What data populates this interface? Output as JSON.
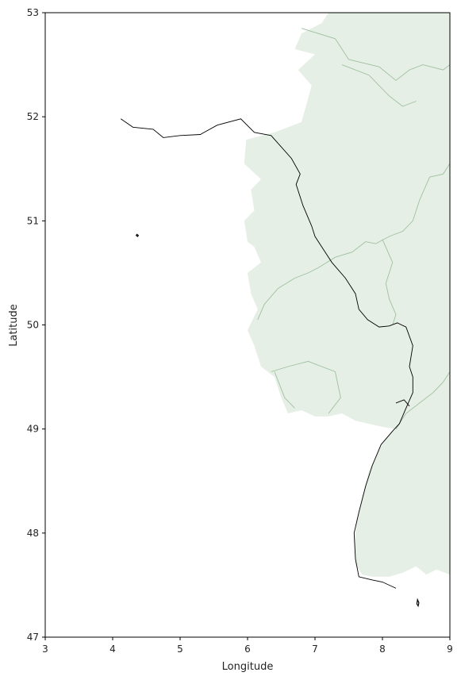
{
  "chart_data": {
    "type": "map",
    "xlabel": "Longitude",
    "ylabel": "Latitude",
    "xlim": [
      3,
      9
    ],
    "ylim": [
      47,
      53
    ],
    "xticks": [
      "3",
      "4",
      "5",
      "6",
      "7",
      "8",
      "9"
    ],
    "yticks": [
      "47",
      "48",
      "49",
      "50",
      "51",
      "52",
      "53"
    ],
    "colors": {
      "region_fill": "#e6efe6",
      "region_border": "#9fc09f",
      "river_line": "#000000"
    },
    "land_outline": [
      [
        5.9,
        53.0
      ],
      [
        9.0,
        53.0
      ],
      [
        9.0,
        47.6
      ],
      [
        8.8,
        47.65
      ],
      [
        8.65,
        47.6
      ],
      [
        8.5,
        47.68
      ],
      [
        8.3,
        47.62
      ],
      [
        8.1,
        47.58
      ],
      [
        7.85,
        47.58
      ],
      [
        7.7,
        47.6
      ],
      [
        7.6,
        47.7
      ],
      [
        7.58,
        47.9
      ],
      [
        7.62,
        48.1
      ],
      [
        7.7,
        48.35
      ],
      [
        7.8,
        48.6
      ],
      [
        7.95,
        48.8
      ],
      [
        8.1,
        48.95
      ],
      [
        8.2,
        49.0
      ],
      [
        8.0,
        49.02
      ],
      [
        7.6,
        49.08
      ],
      [
        7.4,
        49.15
      ],
      [
        7.2,
        49.12
      ],
      [
        7.0,
        49.12
      ],
      [
        6.8,
        49.18
      ],
      [
        6.6,
        49.15
      ],
      [
        6.5,
        49.3
      ],
      [
        6.4,
        49.5
      ],
      [
        6.2,
        49.6
      ],
      [
        6.1,
        49.8
      ],
      [
        6.0,
        49.95
      ],
      [
        6.15,
        50.15
      ],
      [
        6.05,
        50.3
      ],
      [
        6.0,
        50.5
      ],
      [
        6.2,
        50.6
      ],
      [
        6.1,
        50.75
      ],
      [
        6.0,
        50.8
      ],
      [
        5.95,
        51.0
      ],
      [
        6.1,
        51.1
      ],
      [
        6.05,
        51.3
      ],
      [
        6.2,
        51.4
      ],
      [
        5.95,
        51.55
      ],
      [
        5.98,
        51.78
      ],
      [
        6.4,
        51.85
      ],
      [
        6.8,
        51.95
      ],
      [
        6.95,
        52.3
      ],
      [
        6.75,
        52.45
      ],
      [
        7.0,
        52.6
      ],
      [
        6.7,
        52.65
      ],
      [
        6.8,
        52.8
      ],
      [
        7.1,
        52.9
      ],
      [
        7.2,
        53.0
      ]
    ],
    "borders": [
      [
        [
          6.8,
          52.85
        ],
        [
          7.3,
          52.75
        ],
        [
          7.5,
          52.55
        ],
        [
          7.95,
          52.48
        ],
        [
          8.2,
          52.35
        ],
        [
          8.4,
          52.45
        ],
        [
          8.6,
          52.5
        ],
        [
          8.9,
          52.45
        ],
        [
          9.0,
          52.5
        ]
      ],
      [
        [
          7.4,
          52.5
        ],
        [
          7.8,
          52.4
        ],
        [
          8.1,
          52.2
        ],
        [
          8.3,
          52.1
        ],
        [
          8.5,
          52.15
        ]
      ],
      [
        [
          9.0,
          51.55
        ],
        [
          8.9,
          51.45
        ],
        [
          8.7,
          51.42
        ],
        [
          8.55,
          51.2
        ],
        [
          8.45,
          51.0
        ],
        [
          8.3,
          50.9
        ],
        [
          8.1,
          50.85
        ],
        [
          7.9,
          50.78
        ],
        [
          7.75,
          50.8
        ],
        [
          7.55,
          50.7
        ],
        [
          7.3,
          50.65
        ],
        [
          7.05,
          50.55
        ],
        [
          6.9,
          50.5
        ],
        [
          6.7,
          50.45
        ],
        [
          6.45,
          50.35
        ],
        [
          6.25,
          50.2
        ],
        [
          6.15,
          50.05
        ]
      ],
      [
        [
          8.0,
          50.82
        ],
        [
          8.15,
          50.6
        ],
        [
          8.05,
          50.4
        ],
        [
          8.1,
          50.25
        ],
        [
          8.2,
          50.1
        ],
        [
          8.15,
          50.0
        ]
      ],
      [
        [
          9.0,
          49.55
        ],
        [
          8.9,
          49.45
        ],
        [
          8.75,
          49.35
        ],
        [
          8.55,
          49.25
        ],
        [
          8.35,
          49.15
        ],
        [
          8.2,
          49.0
        ]
      ],
      [
        [
          6.35,
          49.55
        ],
        [
          6.6,
          49.6
        ],
        [
          6.9,
          49.65
        ],
        [
          7.1,
          49.6
        ],
        [
          7.3,
          49.55
        ],
        [
          7.38,
          49.3
        ],
        [
          7.2,
          49.15
        ]
      ],
      [
        [
          6.4,
          49.55
        ],
        [
          6.55,
          49.3
        ],
        [
          6.7,
          49.2
        ]
      ]
    ],
    "rivers": [
      [
        [
          4.12,
          51.98
        ],
        [
          4.3,
          51.9
        ],
        [
          4.6,
          51.88
        ],
        [
          4.75,
          51.8
        ],
        [
          5.0,
          51.82
        ],
        [
          5.3,
          51.83
        ],
        [
          5.55,
          51.92
        ],
        [
          5.9,
          51.98
        ],
        [
          6.1,
          51.85
        ],
        [
          6.35,
          51.82
        ],
        [
          6.65,
          51.6
        ],
        [
          6.78,
          51.45
        ],
        [
          6.72,
          51.35
        ],
        [
          6.82,
          51.15
        ],
        [
          6.95,
          50.95
        ],
        [
          7.0,
          50.85
        ],
        [
          7.15,
          50.7
        ],
        [
          7.25,
          50.6
        ],
        [
          7.45,
          50.45
        ],
        [
          7.6,
          50.3
        ],
        [
          7.65,
          50.15
        ],
        [
          7.78,
          50.05
        ],
        [
          7.95,
          49.98
        ],
        [
          8.1,
          49.99
        ],
        [
          8.22,
          50.02
        ],
        [
          8.35,
          49.98
        ],
        [
          8.45,
          49.8
        ],
        [
          8.4,
          49.6
        ],
        [
          8.45,
          49.5
        ],
        [
          8.45,
          49.35
        ],
        [
          8.35,
          49.2
        ],
        [
          8.25,
          49.05
        ],
        [
          8.15,
          48.98
        ],
        [
          7.98,
          48.85
        ],
        [
          7.85,
          48.65
        ],
        [
          7.75,
          48.45
        ],
        [
          7.65,
          48.2
        ],
        [
          7.58,
          48.0
        ],
        [
          7.6,
          47.75
        ],
        [
          7.65,
          47.58
        ],
        [
          7.85,
          47.55
        ],
        [
          8.0,
          47.53
        ],
        [
          8.2,
          47.47
        ]
      ],
      [
        [
          8.2,
          49.25
        ],
        [
          8.32,
          49.28
        ],
        [
          8.4,
          49.22
        ]
      ]
    ],
    "islands": [
      [
        [
          4.36,
          50.87
        ],
        [
          4.38,
          50.86
        ],
        [
          4.37,
          50.85
        ],
        [
          4.35,
          50.86
        ]
      ],
      [
        [
          8.52,
          47.36
        ],
        [
          8.54,
          47.33
        ],
        [
          8.53,
          47.3
        ],
        [
          8.51,
          47.32
        ]
      ]
    ]
  }
}
